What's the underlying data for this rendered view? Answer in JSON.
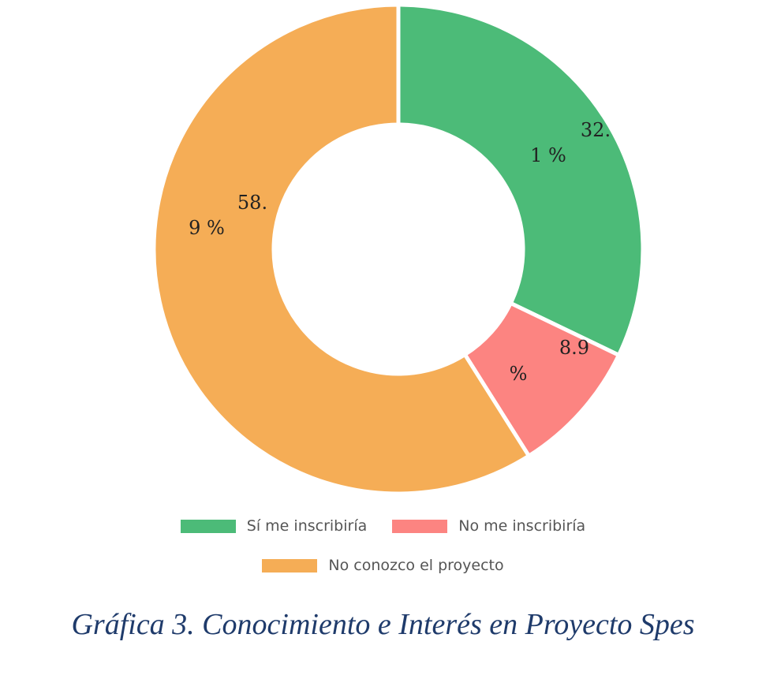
{
  "chart_data": {
    "type": "pie",
    "donut": true,
    "legend_position": "bottom",
    "slices": [
      {
        "name": "Sí me inscribiría",
        "value": 32.1,
        "label_lines": [
          "32.",
          "1 %"
        ],
        "color": "#4cbb78"
      },
      {
        "name": "No me inscribiría",
        "value": 8.9,
        "label_lines": [
          "8.9",
          "%"
        ],
        "color": "#fc8481"
      },
      {
        "name": "No conozco el proyecto",
        "value": 58.9,
        "label_lines": [
          "58.",
          "9 %"
        ],
        "color": "#f5ad56"
      }
    ]
  },
  "caption": "Gráfica 3. Conocimiento e Interés en Proyecto Spes"
}
